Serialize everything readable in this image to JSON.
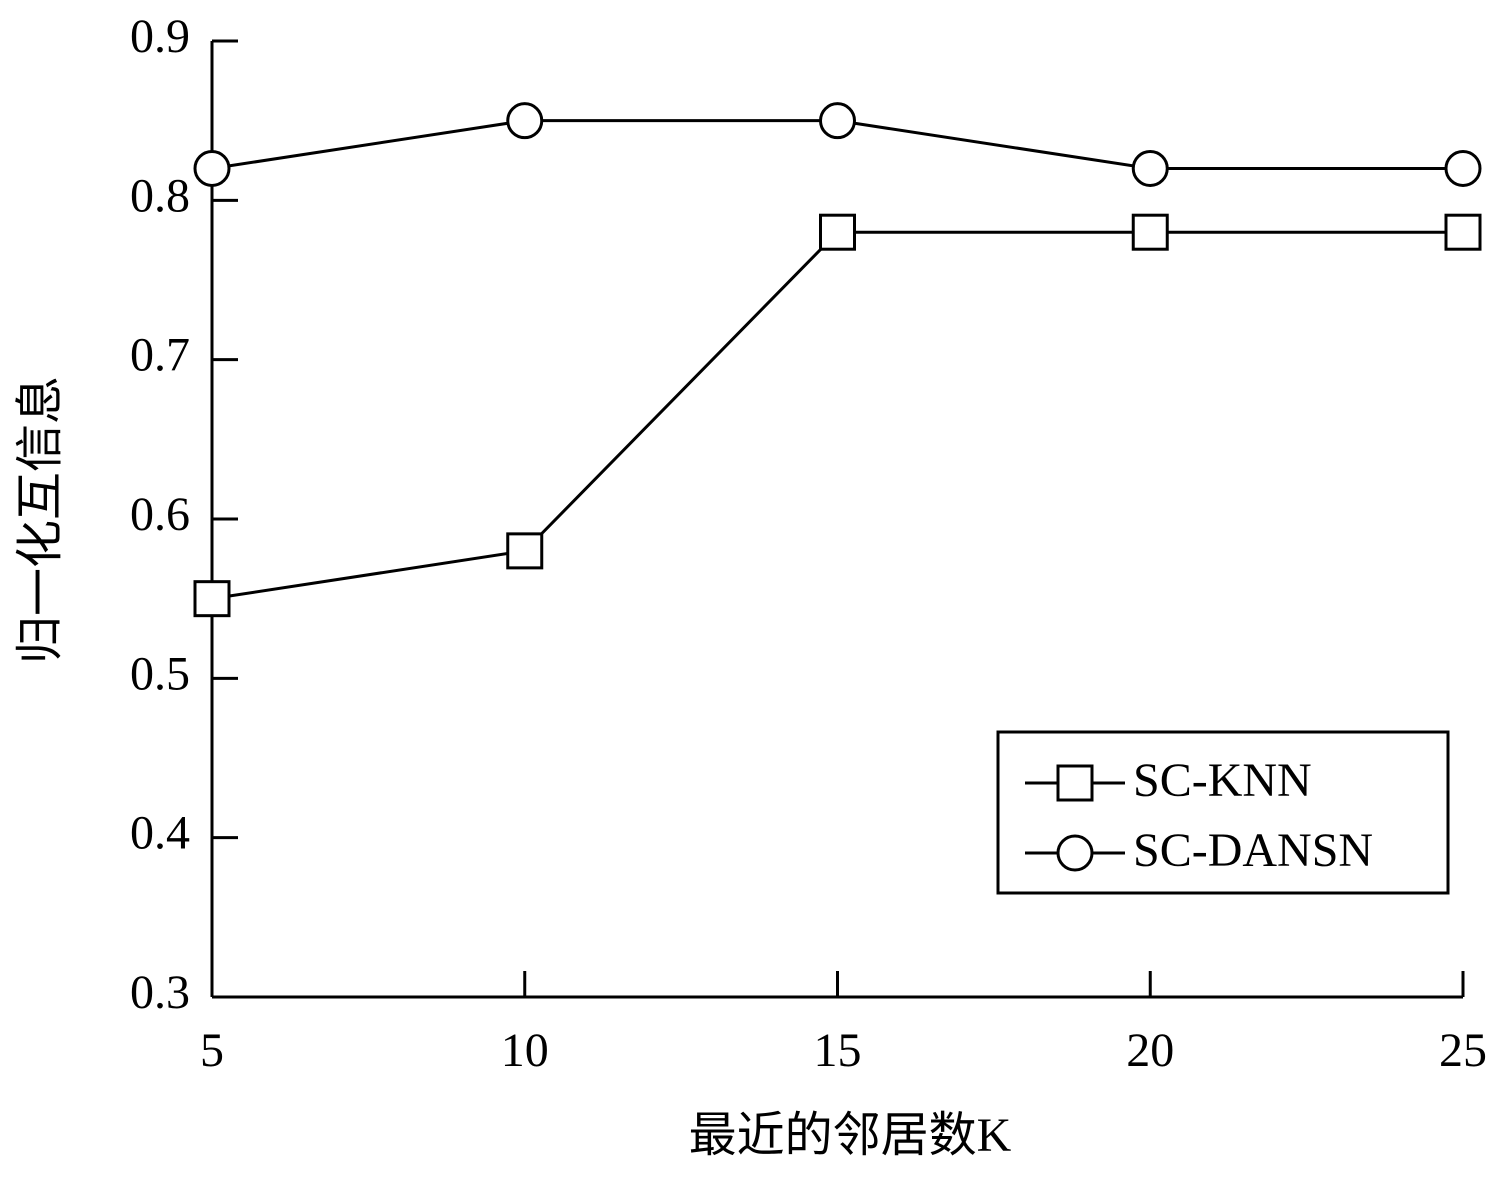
{
  "chart_data": {
    "type": "line",
    "x": [
      5,
      10,
      15,
      20,
      25
    ],
    "series": [
      {
        "name": "SC-KNN",
        "color": "#000000",
        "marker": "square",
        "values": [
          0.55,
          0.58,
          0.78,
          0.78,
          0.78
        ]
      },
      {
        "name": "SC-DANSN",
        "color": "#000000",
        "marker": "circle",
        "values": [
          0.82,
          0.85,
          0.85,
          0.82,
          0.82
        ]
      }
    ],
    "xlabel": "最近的邻居数K",
    "ylabel": "归一化互信息",
    "xlim": [
      5,
      25
    ],
    "xticks": [
      5,
      10,
      15,
      20,
      25
    ],
    "ylim": [
      0.3,
      0.9
    ],
    "yticks": [
      0.3,
      0.4,
      0.5,
      0.6,
      0.7,
      0.8,
      0.9
    ],
    "grid": false,
    "legend": "lower right"
  }
}
